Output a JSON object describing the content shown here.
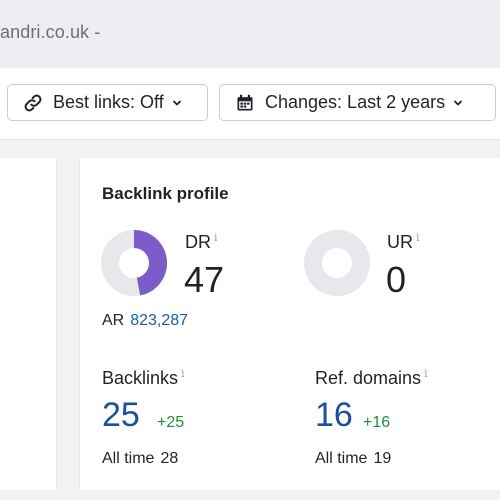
{
  "header": {
    "domain_text": "andri.co.uk -"
  },
  "toolbar": {
    "best_links_label": "Best links: Off",
    "changes_label": "Changes: Last 2 years",
    "icons": [
      "link-icon",
      "calendar-icon",
      "chevron-down-icon"
    ]
  },
  "backlink_profile": {
    "title": "Backlink profile",
    "dr": {
      "label": "DR",
      "info": "i",
      "value": "47",
      "fill_fraction": 0.47
    },
    "ur": {
      "label": "UR",
      "info": "i",
      "value": "0",
      "fill_fraction": 0
    },
    "ar": {
      "label": "AR",
      "value": "823,287"
    },
    "backlinks": {
      "label": "Backlinks",
      "info": "i",
      "value": "25",
      "delta": "+25",
      "all_time_label": "All time",
      "all_time_value": "28"
    },
    "ref_domains": {
      "label": "Ref. domains",
      "info": "i",
      "value": "16",
      "delta": "+16",
      "all_time_label": "All time",
      "all_time_value": "19"
    }
  },
  "colors": {
    "donut_fill": "#7b5cc9",
    "donut_track": "#e7e8eb",
    "link_blue": "#1c4f9c",
    "delta_green": "#1f8f3a"
  }
}
